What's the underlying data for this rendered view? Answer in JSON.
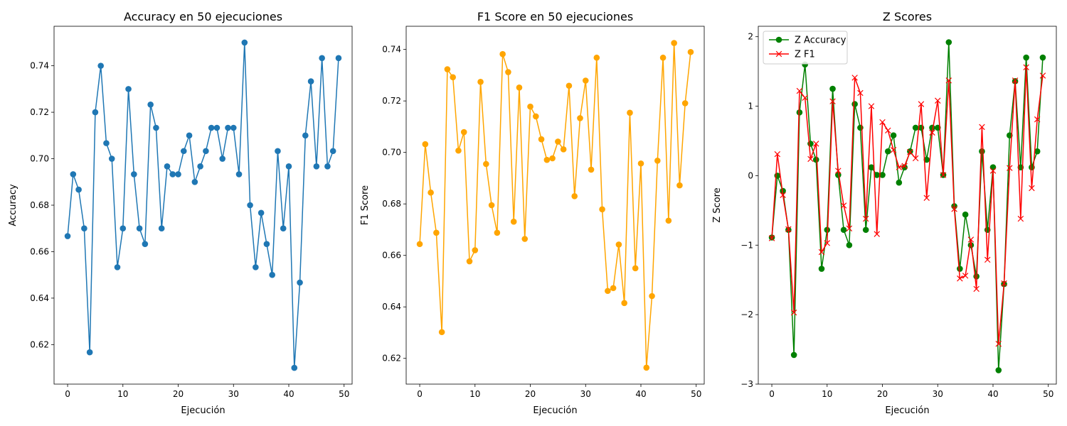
{
  "chart_data": [
    {
      "type": "line",
      "title": "Accuracy en 50 ejecuciones",
      "xlabel": "Ejecución",
      "ylabel": "Accuracy",
      "xlim": [
        -2.45,
        51.45
      ],
      "ylim": [
        0.603,
        0.757
      ],
      "xticks": [
        0,
        10,
        20,
        30,
        40,
        50
      ],
      "yticks": [
        0.62,
        0.64,
        0.66,
        0.68,
        0.7,
        0.72,
        0.74
      ],
      "ytick_labels": [
        "0.62",
        "0.64",
        "0.66",
        "0.68",
        "0.70",
        "0.72",
        "0.74"
      ],
      "grid": false,
      "series": [
        {
          "color": "#1f77b4",
          "marker": "circle",
          "values": [
            0.6667,
            0.6933,
            0.6867,
            0.67,
            0.6167,
            0.72,
            0.74,
            0.7067,
            0.7,
            0.6533,
            0.67,
            0.73,
            0.6933,
            0.67,
            0.6633,
            0.7233,
            0.7133,
            0.67,
            0.6967,
            0.6933,
            0.6933,
            0.7033,
            0.71,
            0.69,
            0.6967,
            0.7033,
            0.7133,
            0.7133,
            0.7,
            0.7133,
            0.7133,
            0.6933,
            0.75,
            0.68,
            0.6533,
            0.6767,
            0.6633,
            0.65,
            0.7033,
            0.67,
            0.6967,
            0.61,
            0.6467,
            0.71,
            0.7333,
            0.6967,
            0.7433,
            0.6967,
            0.7033,
            0.7433
          ]
        }
      ]
    },
    {
      "type": "line",
      "title": "F1 Score en 50 ejecuciones",
      "xlabel": "Ejecución",
      "ylabel": "F1 Score",
      "xlim": [
        -2.45,
        51.45
      ],
      "ylim": [
        0.61,
        0.749
      ],
      "xticks": [
        0,
        10,
        20,
        30,
        40,
        50
      ],
      "yticks": [
        0.62,
        0.64,
        0.66,
        0.68,
        0.7,
        0.72,
        0.74
      ],
      "ytick_labels": [
        "0.62",
        "0.64",
        "0.66",
        "0.68",
        "0.70",
        "0.72",
        "0.74"
      ],
      "grid": false,
      "series": [
        {
          "color": "#ffa500",
          "marker": "circle",
          "values": [
            0.6644,
            0.7032,
            0.6844,
            0.6688,
            0.6302,
            0.7323,
            0.7292,
            0.7007,
            0.7079,
            0.6577,
            0.662,
            0.7274,
            0.6955,
            0.6795,
            0.6688,
            0.7382,
            0.7312,
            0.6731,
            0.7252,
            0.6664,
            0.7178,
            0.714,
            0.7051,
            0.6971,
            0.6977,
            0.7042,
            0.7012,
            0.7259,
            0.683,
            0.7133,
            0.7279,
            0.6933,
            0.7368,
            0.6779,
            0.6462,
            0.6473,
            0.6642,
            0.6415,
            0.7154,
            0.655,
            0.6957,
            0.6164,
            0.6442,
            0.6968,
            0.7368,
            0.6735,
            0.7425,
            0.6872,
            0.7191,
            0.739
          ]
        }
      ]
    },
    {
      "type": "line",
      "title": "Z Scores",
      "xlabel": "Ejecución",
      "ylabel": "Z Score",
      "xlim": [
        -2.45,
        51.45
      ],
      "ylim": [
        -3.0,
        2.15
      ],
      "xticks": [
        0,
        10,
        20,
        30,
        40,
        50
      ],
      "yticks": [
        -3,
        -2,
        -1,
        0,
        1,
        2
      ],
      "ytick_labels": [
        "−3",
        "−2",
        "−1",
        "0",
        "1",
        "2"
      ],
      "grid": false,
      "legend": "top-left",
      "series": [
        {
          "name": "Z Accuracy",
          "color": "#008000",
          "marker": "circle",
          "values": [
            -0.89,
            0.0,
            -0.22,
            -0.78,
            -2.58,
            0.91,
            1.6,
            0.46,
            0.23,
            -1.34,
            -0.78,
            1.25,
            0.01,
            -0.78,
            -1.0,
            1.03,
            0.69,
            -0.78,
            0.12,
            0.01,
            0.01,
            0.35,
            0.58,
            -0.1,
            0.12,
            0.35,
            0.69,
            0.69,
            0.23,
            0.69,
            0.69,
            0.01,
            1.92,
            -0.44,
            -1.34,
            -0.56,
            -1.0,
            -1.45,
            0.35,
            -0.78,
            0.12,
            -2.8,
            -1.56,
            0.58,
            1.36,
            0.12,
            1.7,
            0.12,
            0.35,
            1.7
          ]
        },
        {
          "name": "Z F1",
          "color": "#ff0000",
          "marker": "x",
          "values": [
            -0.9,
            0.31,
            -0.28,
            -0.77,
            -1.97,
            1.22,
            1.12,
            0.24,
            0.46,
            -1.1,
            -0.97,
            1.07,
            0.07,
            -0.43,
            -0.76,
            1.41,
            1.19,
            -0.62,
            1.0,
            -0.84,
            0.77,
            0.65,
            0.37,
            0.12,
            0.14,
            0.34,
            0.25,
            1.03,
            -0.32,
            0.62,
            1.08,
            0.01,
            1.37,
            -0.48,
            -1.48,
            -1.44,
            -0.92,
            -1.63,
            0.7,
            -1.21,
            0.07,
            -2.42,
            -1.55,
            0.11,
            1.37,
            -0.62,
            1.56,
            -0.18,
            0.81,
            1.44
          ]
        }
      ]
    }
  ]
}
